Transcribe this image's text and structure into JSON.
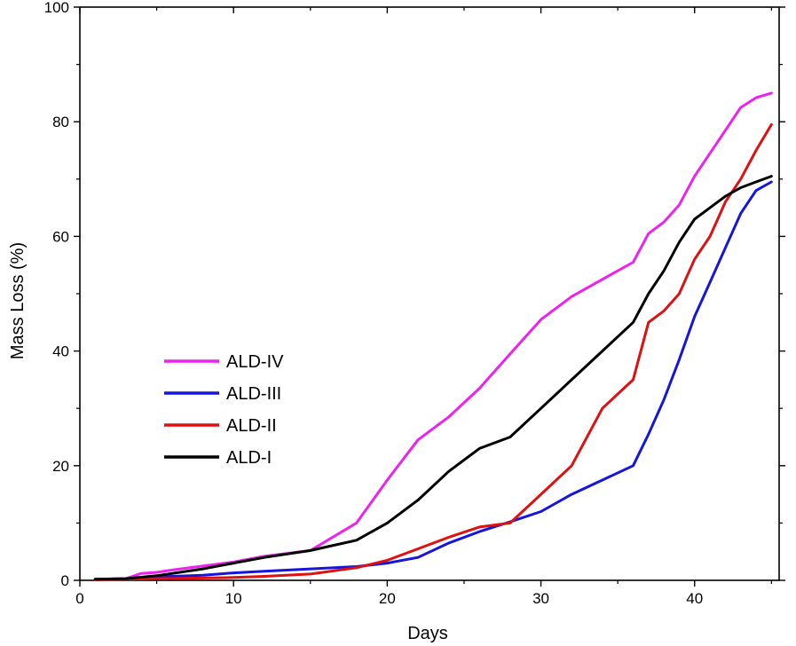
{
  "chart_data": {
    "type": "line",
    "title": "",
    "xlabel": "Days",
    "ylabel": "Mass Loss (%)",
    "xlim": [
      0,
      45.5
    ],
    "ylim": [
      0,
      100
    ],
    "xticks": [
      0,
      10,
      20,
      30,
      40
    ],
    "yticks": [
      0,
      20,
      40,
      60,
      80,
      100
    ],
    "grid": false,
    "legend_position": "left",
    "series": [
      {
        "name": "ALD-IV",
        "color": "#ee22ee",
        "x": [
          1,
          3,
          4,
          5,
          6,
          8,
          10,
          12,
          15,
          18,
          20,
          22,
          24,
          26,
          28,
          30,
          32,
          34,
          36,
          37,
          38,
          39,
          40,
          41,
          42,
          43,
          44,
          45
        ],
        "y": [
          0.2,
          0.3,
          1.2,
          1.4,
          1.8,
          2.5,
          3.2,
          4.2,
          5.2,
          10,
          17.5,
          24.5,
          28.5,
          33.5,
          39.5,
          45.5,
          49.5,
          52.5,
          55.5,
          60.5,
          62.5,
          65.5,
          70.5,
          74.5,
          78.5,
          82.5,
          84.2,
          85
        ]
      },
      {
        "name": "ALD-III",
        "color": "#1515dd",
        "x": [
          1,
          3,
          5,
          8,
          10,
          12,
          15,
          18,
          20,
          22,
          24,
          26,
          28,
          30,
          32,
          34,
          36,
          37,
          38,
          39,
          40,
          41,
          42,
          43,
          44,
          45
        ],
        "y": [
          0.2,
          0.3,
          0.6,
          0.9,
          1.3,
          1.6,
          2,
          2.4,
          3,
          4,
          6.5,
          8.5,
          10.2,
          12,
          15,
          17.5,
          20,
          25.5,
          31.5,
          38.5,
          46,
          52,
          58,
          64,
          68,
          69.5
        ]
      },
      {
        "name": "ALD-II",
        "color": "#dd1111",
        "x": [
          1,
          3,
          5,
          8,
          10,
          12,
          15,
          18,
          20,
          22,
          24,
          26,
          28,
          30,
          32,
          34,
          36,
          37,
          38,
          39,
          40,
          41,
          42,
          43,
          44,
          45
        ],
        "y": [
          0.1,
          0.2,
          0.3,
          0.4,
          0.5,
          0.7,
          1.1,
          2.2,
          3.5,
          5.5,
          7.5,
          9.3,
          10,
          15,
          20,
          30,
          35,
          45,
          47,
          50,
          56,
          60,
          66,
          70,
          75,
          79.5
        ]
      },
      {
        "name": "ALD-I",
        "color": "#000000",
        "x": [
          1,
          3,
          5,
          8,
          10,
          12,
          15,
          18,
          20,
          22,
          24,
          26,
          28,
          30,
          32,
          34,
          36,
          37,
          38,
          39,
          40,
          41,
          42,
          43,
          44,
          45
        ],
        "y": [
          0.2,
          0.3,
          0.8,
          2,
          3,
          4,
          5.2,
          7,
          10,
          14,
          19,
          23,
          25,
          30,
          35,
          40,
          45,
          50,
          54,
          59,
          63,
          65,
          67,
          68.5,
          69.5,
          70.5
        ]
      }
    ]
  }
}
